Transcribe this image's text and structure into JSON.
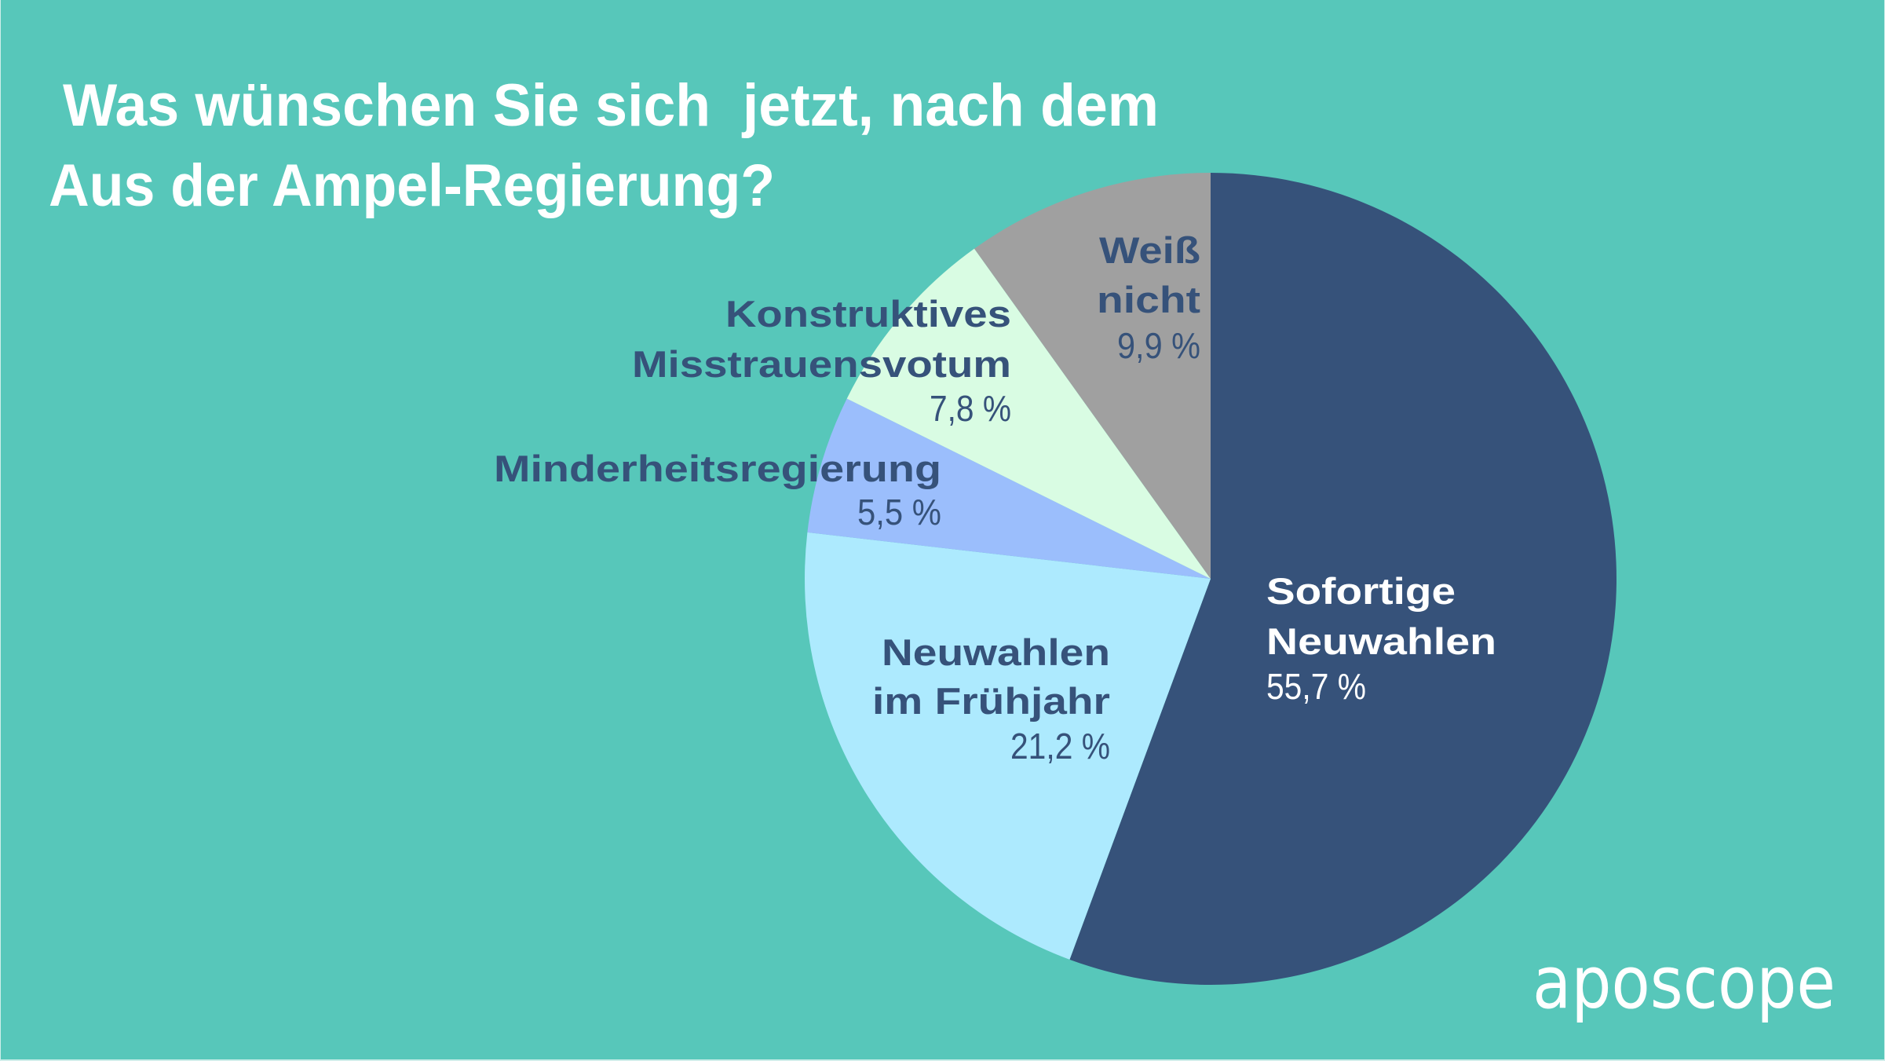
{
  "colors": {
    "background": "#57C7BA",
    "label_dark": "#36527A",
    "label_light": "#FFFFFF",
    "title": "#FFFFFF"
  },
  "chart_data": {
    "type": "pie",
    "title_lines": [
      "Was wünschen Sie sich  jetzt, nach dem",
      "Aus der Ampel-Regierung?"
    ],
    "unit": "%",
    "start_angle": "12 o'clock",
    "direction": "clockwise",
    "slices": [
      {
        "label_lines": [
          "Sofortige",
          "Neuwahlen"
        ],
        "value": 55.7,
        "value_label": "55,7 %",
        "color": "#36527A"
      },
      {
        "label_lines": [
          "Neuwahlen",
          "im Frühjahr"
        ],
        "value": 21.2,
        "value_label": "21,2 %",
        "color": "#ADEAFE"
      },
      {
        "label_lines": [
          "Minderheitsregierung"
        ],
        "value": 5.5,
        "value_label": "5,5 %",
        "color": "#9BBEFC"
      },
      {
        "label_lines": [
          "Konstruktives",
          "Misstrauensvotum"
        ],
        "value": 7.8,
        "value_label": "7,8 %",
        "color": "#D9FCE3"
      },
      {
        "label_lines": [
          "Weiß",
          "nicht"
        ],
        "value": 9.9,
        "value_label": "9,9 %",
        "color": "#A0A0A0"
      }
    ]
  },
  "branding": {
    "logo_text": "aposcope"
  }
}
